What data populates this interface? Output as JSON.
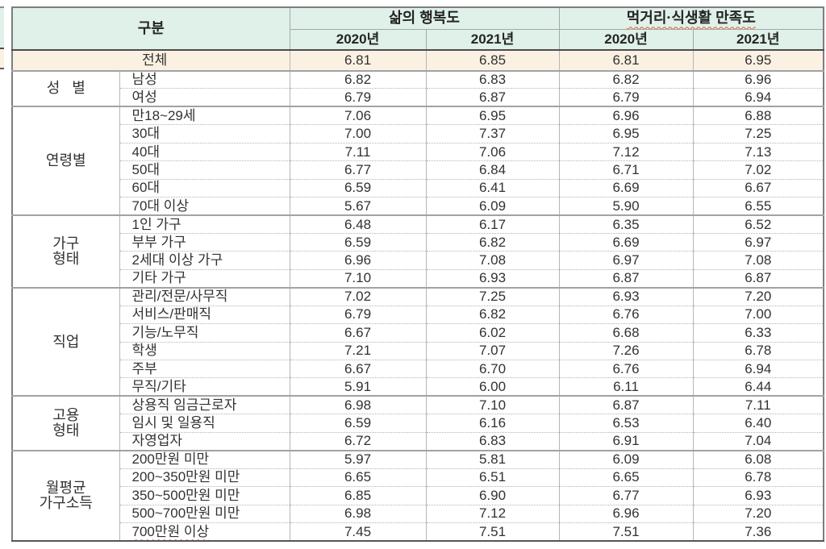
{
  "chart_data": {
    "type": "table",
    "title": "",
    "column_groups": [
      {
        "label": "구분",
        "colspan": 2
      },
      {
        "label": "삶의 행복도",
        "colspan": 2
      },
      {
        "label": "먹거리·식생활 만족도",
        "colspan": 2
      }
    ],
    "year_headers": [
      "2020년",
      "2021년",
      "2020년",
      "2021년"
    ],
    "total_row": {
      "label": "전체",
      "values": [
        "6.81",
        "6.85",
        "6.81",
        "6.95"
      ]
    },
    "sections": [
      {
        "group": "성   별",
        "rows": [
          {
            "label": "남성",
            "values": [
              "6.82",
              "6.83",
              "6.82",
              "6.96"
            ]
          },
          {
            "label": "여성",
            "values": [
              "6.79",
              "6.87",
              "6.79",
              "6.94"
            ]
          }
        ]
      },
      {
        "group": "연령별",
        "rows": [
          {
            "label": "만18~29세",
            "values": [
              "7.06",
              "6.95",
              "6.96",
              "6.88"
            ]
          },
          {
            "label": "30대",
            "values": [
              "7.00",
              "7.37",
              "6.95",
              "7.25"
            ]
          },
          {
            "label": "40대",
            "values": [
              "7.11",
              "7.06",
              "7.12",
              "7.13"
            ]
          },
          {
            "label": "50대",
            "values": [
              "6.77",
              "6.84",
              "6.71",
              "7.02"
            ]
          },
          {
            "label": "60대",
            "values": [
              "6.59",
              "6.41",
              "6.69",
              "6.67"
            ]
          },
          {
            "label": "70대 이상",
            "values": [
              "5.67",
              "6.09",
              "5.90",
              "6.55"
            ]
          }
        ]
      },
      {
        "group": "가구\n형태",
        "rows": [
          {
            "label": "1인 가구",
            "values": [
              "6.48",
              "6.17",
              "6.35",
              "6.52"
            ]
          },
          {
            "label": "부부 가구",
            "values": [
              "6.59",
              "6.82",
              "6.69",
              "6.97"
            ]
          },
          {
            "label": "2세대 이상 가구",
            "values": [
              "6.96",
              "7.08",
              "6.97",
              "7.08"
            ]
          },
          {
            "label": "기타 가구",
            "values": [
              "7.10",
              "6.93",
              "6.87",
              "6.87"
            ]
          }
        ]
      },
      {
        "group": "직업",
        "rows": [
          {
            "label": "관리/전문/사무직",
            "values": [
              "7.02",
              "7.25",
              "6.93",
              "7.20"
            ]
          },
          {
            "label": "서비스/판매직",
            "values": [
              "6.79",
              "6.82",
              "6.76",
              "7.00"
            ]
          },
          {
            "label": "기능/노무직",
            "values": [
              "6.67",
              "6.02",
              "6.68",
              "6.33"
            ]
          },
          {
            "label": "학생",
            "values": [
              "7.21",
              "7.07",
              "7.26",
              "6.78"
            ]
          },
          {
            "label": "주부",
            "values": [
              "6.67",
              "6.70",
              "6.76",
              "6.94"
            ]
          },
          {
            "label": "무직/기타",
            "values": [
              "5.91",
              "6.00",
              "6.11",
              "6.44"
            ]
          }
        ]
      },
      {
        "group": "고용\n형태",
        "rows": [
          {
            "label": "상용직 임금근로자",
            "values": [
              "6.98",
              "7.10",
              "6.87",
              "7.11"
            ]
          },
          {
            "label": "임시 및 일용직",
            "values": [
              "6.59",
              "6.16",
              "6.53",
              "6.40"
            ]
          },
          {
            "label": "자영업자",
            "values": [
              "6.72",
              "6.83",
              "6.91",
              "7.04"
            ]
          }
        ]
      },
      {
        "group": "월평균\n가구소득",
        "rows": [
          {
            "label": "200만원 미만",
            "values": [
              "5.97",
              "5.81",
              "6.09",
              "6.08"
            ]
          },
          {
            "label": "200~350만원 미만",
            "values": [
              "6.65",
              "6.51",
              "6.65",
              "6.78"
            ]
          },
          {
            "label": "350~500만원 미만",
            "values": [
              "6.85",
              "6.90",
              "6.77",
              "6.93"
            ]
          },
          {
            "label": "500~700만원 미만",
            "values": [
              "6.98",
              "7.12",
              "6.96",
              "7.20"
            ]
          },
          {
            "label": "700만원 이상",
            "values": [
              "7.45",
              "7.51",
              "7.51",
              "7.36"
            ]
          }
        ]
      }
    ],
    "layout_hints": {
      "legend": "none",
      "grid": "dotted row separators inside sections, solid separators between sections"
    },
    "colors": {
      "header_bg": "#dff1e9",
      "total_row_bg": "#fbf1e2",
      "text": "#323232",
      "spellcheck_underline": "#e8502d"
    },
    "spellcheck_marks": [
      "먹거리·식생활 만족도",
      "700만원 이상"
    ]
  }
}
